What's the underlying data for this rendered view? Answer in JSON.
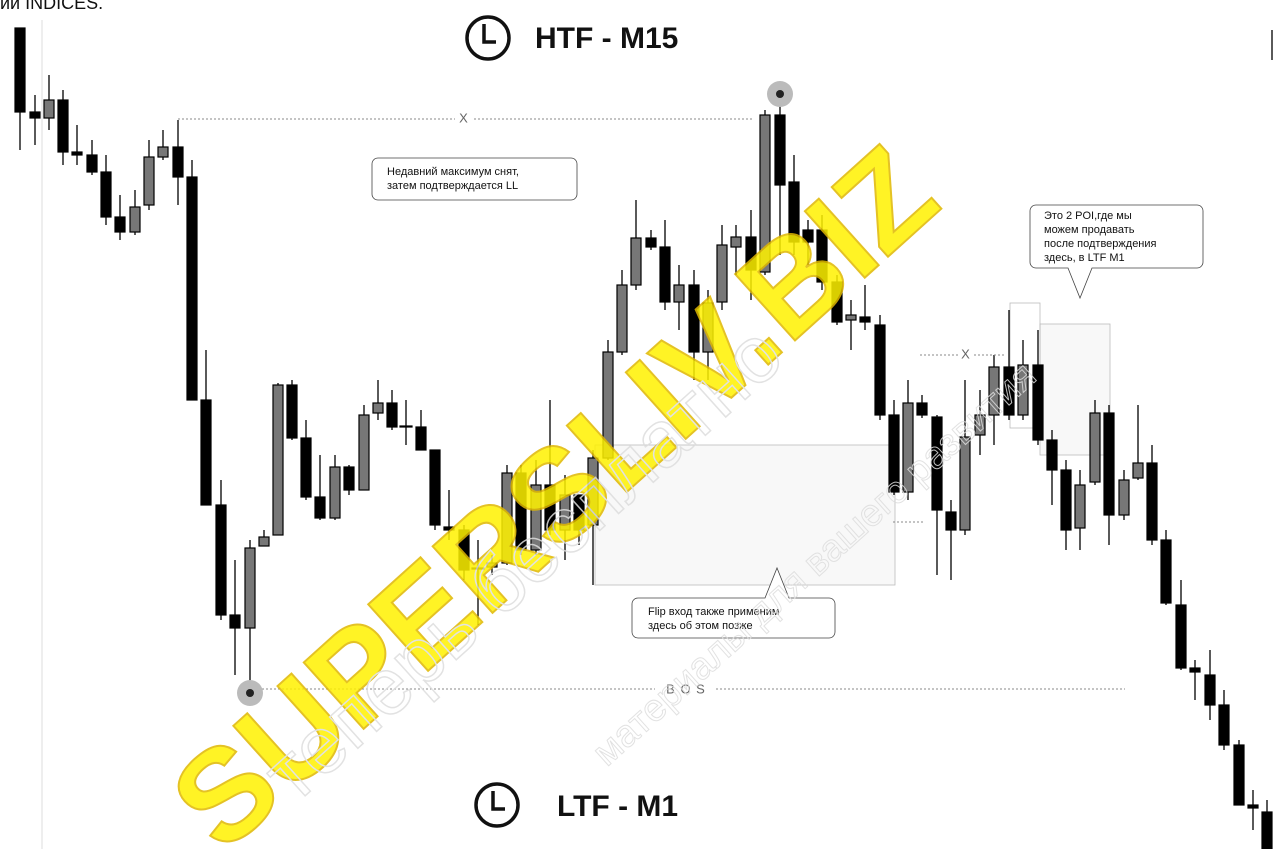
{
  "header": {
    "corner": "ий INDICES.",
    "htf": "HTF -  M15",
    "ltf": "LTF -  M1"
  },
  "markers": {
    "x1": "X",
    "x2": "X",
    "bos": "B O S"
  },
  "notes": {
    "high": [
      "Недавний максимум снят,",
      "затем подтверждается LL"
    ],
    "poi": [
      "Это 2 POI,где мы",
      "можем продавать",
      "после подтверждения",
      "здесь, в LTF M1"
    ],
    "flip": [
      "Flip вход также применим",
      "здесь об этом позже"
    ]
  },
  "watermark": {
    "brand": "SUPERSLIV.BIZ",
    "free": "теперь бесплатно",
    "materials": "материалы для вашего развития"
  }
}
